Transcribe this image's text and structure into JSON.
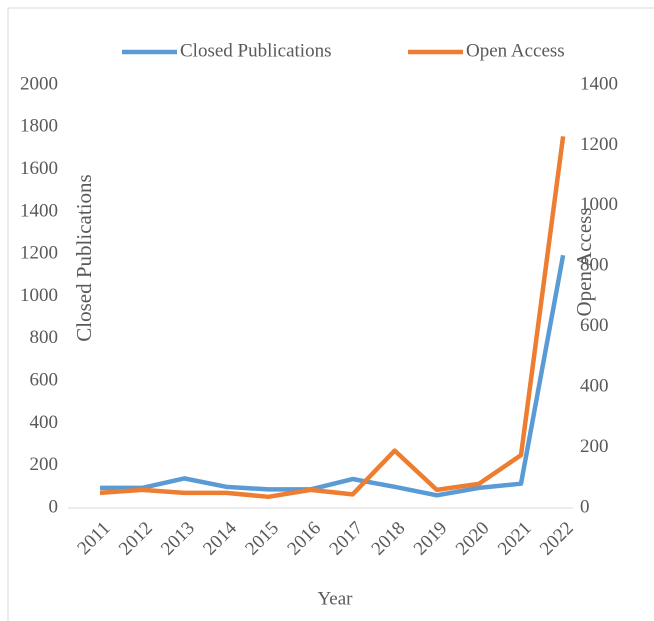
{
  "chart_data": {
    "type": "line",
    "x_label": "Year",
    "y_label": "Closed Publications",
    "y2_label": "Open Access",
    "categories": [
      "2011",
      "2012",
      "2013",
      "2014",
      "2015",
      "2016",
      "2017",
      "2018",
      "2019",
      "2020",
      "2021",
      "2022"
    ],
    "series": [
      {
        "name": "Closed Publications",
        "color": "#5b9bd5",
        "values": [
          95,
          95,
          140,
          100,
          88,
          88,
          137,
          100,
          60,
          95,
          115,
          1195
        ]
      },
      {
        "name": "Open Access",
        "color": "#ed7d31",
        "axis": "y2",
        "values": [
          50,
          60,
          50,
          50,
          37,
          60,
          45,
          190,
          60,
          80,
          175,
          1230
        ]
      }
    ],
    "ylim": [
      0,
      2000
    ],
    "yticks": [
      0,
      200,
      400,
      600,
      800,
      1000,
      1200,
      1400,
      1600,
      1800,
      2000
    ],
    "y2lim": [
      0,
      1400
    ],
    "y2ticks": [
      0,
      200,
      400,
      600,
      800,
      1000,
      1200,
      1400
    ],
    "legend": "top"
  }
}
